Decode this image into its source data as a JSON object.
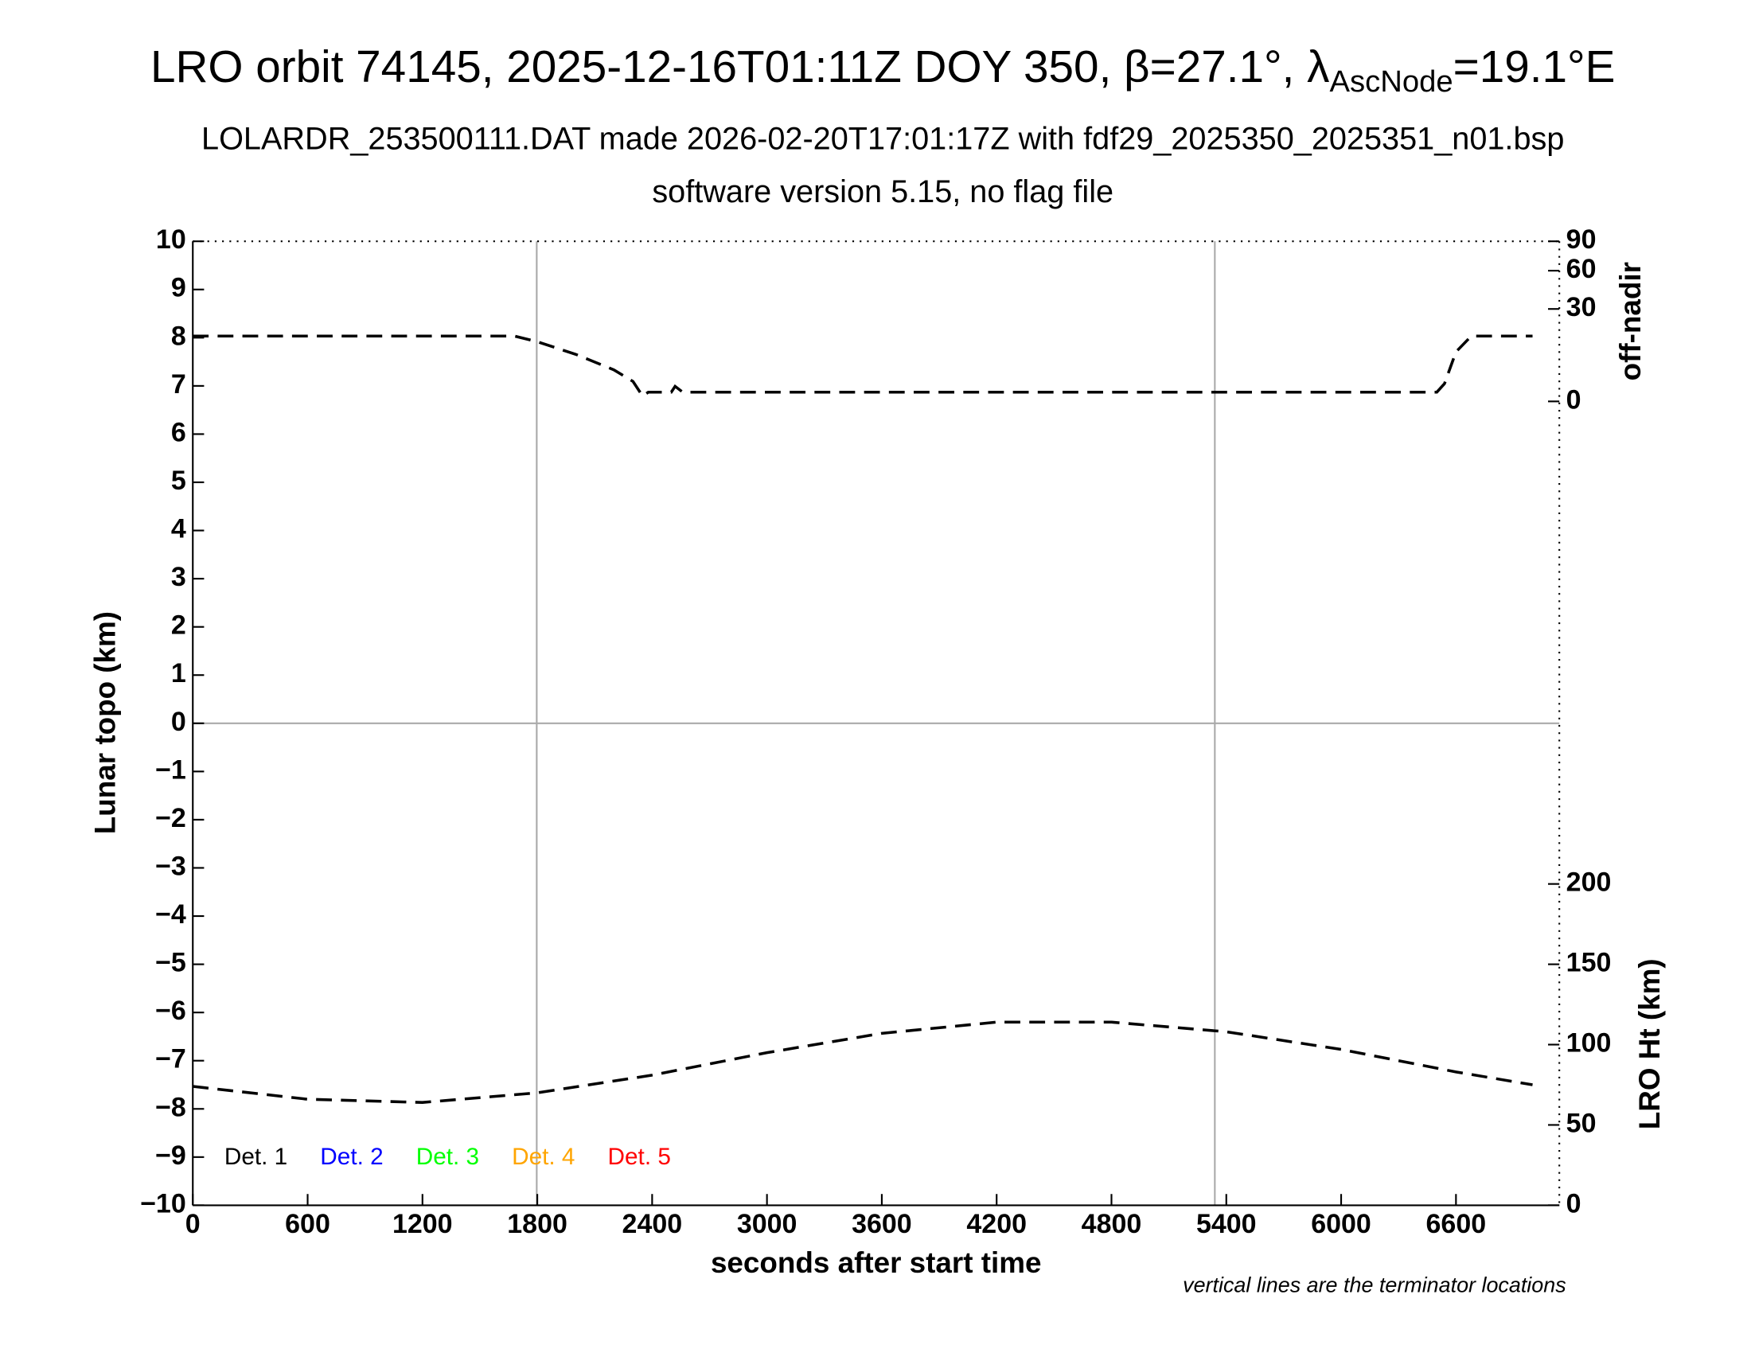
{
  "chart_data": {
    "type": "line",
    "title": "LRO orbit 74145, 2025-12-16T01:11Z DOY 350, β=27.1°, λ",
    "title_subscript": "AscNode",
    "title_suffix": "=19.1°E",
    "subtitle": [
      "LOLARDR_253500111.DAT made 2026-02-20T17:01:17Z with fdf29_2025350_2025351_n01.bsp",
      "software version 5.15, no flag file"
    ],
    "xlabel": "seconds after start time",
    "ylabel": "Lunar topo (km)",
    "y2label": "off-nadir",
    "y3label": "LRO Ht (km)",
    "annotation": "vertical lines are the terminator locations",
    "xlim": [
      0,
      7140
    ],
    "xticks": [
      0,
      600,
      1200,
      1800,
      2400,
      3000,
      3600,
      4200,
      4800,
      5400,
      6000,
      6600
    ],
    "ylim": [
      -10,
      10
    ],
    "yticks": [
      {
        "value": -10,
        "label": "−10"
      },
      {
        "value": -9,
        "label": "−9"
      },
      {
        "value": -8,
        "label": "−8"
      },
      {
        "value": -7,
        "label": "−7"
      },
      {
        "value": -6,
        "label": "−6"
      },
      {
        "value": -5,
        "label": "−5"
      },
      {
        "value": -4,
        "label": "−4"
      },
      {
        "value": -3,
        "label": "−3"
      },
      {
        "value": -2,
        "label": "−2"
      },
      {
        "value": -1,
        "label": "−1"
      },
      0,
      1,
      2,
      3,
      4,
      5,
      6,
      7,
      8,
      9,
      10
    ],
    "y2lim": [
      0,
      90
    ],
    "y2scale": "sqrt",
    "y2ticks": [
      0,
      30,
      60,
      90
    ],
    "y3lim": [
      0,
      300
    ],
    "y3ticks": [
      0,
      50,
      100,
      150,
      200
    ],
    "terminators": [
      1797,
      5340
    ],
    "series": [
      {
        "color": "#000000",
        "line_style": "dashed",
        "axis": "y2",
        "x": [
          0,
          1680,
          1800,
          2000,
          2200,
          2300,
          2350,
          2380,
          2500,
          2520,
          2560,
          6500,
          6540,
          6600,
          6680,
          7000
        ],
        "values": [
          15,
          15,
          12.5,
          7.8,
          3.5,
          1.4,
          0.1,
          0.3,
          0.3,
          0.8,
          0.3,
          0.3,
          1.1,
          8.6,
          15,
          15
        ]
      },
      {
        "color": "#000000",
        "line_style": "dashed",
        "axis": "y3",
        "x": [
          0,
          600,
          1200,
          1800,
          2400,
          3000,
          3600,
          4200,
          4800,
          5400,
          6000,
          6600,
          7000
        ],
        "values": [
          74,
          66,
          64,
          70,
          81,
          95,
          107,
          114,
          114,
          108,
          97,
          83,
          75
        ]
      }
    ],
    "legend": [
      {
        "name": "Det. 1",
        "color": "#000000"
      },
      {
        "name": "Det. 2",
        "color": "#0000ff"
      },
      {
        "name": "Det. 3",
        "color": "#00ff00"
      },
      {
        "name": "Det. 4",
        "color": "#ffa500"
      },
      {
        "name": "Det. 5",
        "color": "#ff0000"
      }
    ],
    "legend_loc": "lower left"
  }
}
